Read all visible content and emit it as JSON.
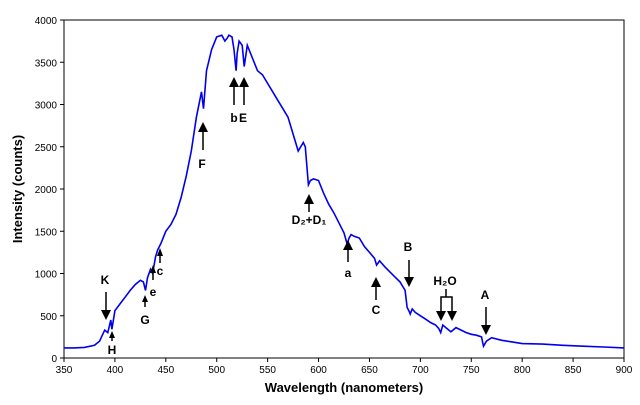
{
  "chart_data": {
    "type": "line",
    "xlabel": "Wavelength (nanometers)",
    "ylabel": "Intensity (counts)",
    "xlim": [
      350,
      900
    ],
    "ylim": [
      0,
      4000
    ],
    "xticks": [
      350,
      400,
      450,
      500,
      550,
      600,
      650,
      700,
      750,
      800,
      850,
      900
    ],
    "yticks": [
      0,
      500,
      1000,
      1500,
      2000,
      2500,
      3000,
      3500,
      4000
    ],
    "grid": false,
    "line_color": "#0000ee",
    "series": [
      {
        "x": [
          350,
          360,
          370,
          380,
          385,
          390,
          393,
          395,
          396,
          397,
          400,
          405,
          410,
          415,
          420,
          425,
          428,
          430,
          432,
          435,
          437,
          440,
          442,
          445,
          450,
          455,
          460,
          465,
          470,
          475,
          480,
          485,
          487,
          490,
          495,
          500,
          505,
          508,
          510,
          512,
          515,
          517,
          519,
          520,
          522,
          525,
          527,
          530,
          535,
          540,
          545,
          550,
          555,
          560,
          565,
          570,
          575,
          580,
          585,
          587,
          590,
          592,
          595,
          600,
          605,
          610,
          615,
          620,
          625,
          628,
          630,
          632,
          635,
          640,
          645,
          650,
          655,
          657,
          660,
          665,
          670,
          675,
          680,
          685,
          687,
          689,
          690,
          692,
          695,
          700,
          705,
          710,
          715,
          718,
          720,
          722,
          725,
          728,
          730,
          735,
          740,
          745,
          750,
          755,
          760,
          762,
          765,
          770,
          780,
          790,
          800,
          820,
          840,
          860,
          880,
          900
        ],
        "y": [
          120,
          120,
          125,
          150,
          200,
          330,
          300,
          400,
          450,
          340,
          560,
          640,
          720,
          800,
          870,
          920,
          900,
          800,
          950,
          1050,
          1000,
          1200,
          1280,
          1350,
          1500,
          1580,
          1700,
          1900,
          2150,
          2450,
          2850,
          3150,
          2950,
          3400,
          3650,
          3800,
          3820,
          3750,
          3780,
          3820,
          3800,
          3650,
          3400,
          3600,
          3750,
          3700,
          3450,
          3700,
          3550,
          3400,
          3350,
          3250,
          3150,
          3050,
          2950,
          2850,
          2650,
          2450,
          2550,
          2500,
          2050,
          2100,
          2120,
          2100,
          1950,
          1820,
          1720,
          1600,
          1480,
          1350,
          1420,
          1460,
          1440,
          1420,
          1320,
          1250,
          1180,
          1100,
          1150,
          1080,
          1020,
          960,
          900,
          800,
          600,
          550,
          520,
          580,
          540,
          500,
          460,
          420,
          390,
          350,
          300,
          390,
          360,
          330,
          310,
          360,
          330,
          300,
          280,
          270,
          250,
          140,
          200,
          240,
          210,
          190,
          170,
          165,
          150,
          140,
          130,
          120
        ]
      }
    ],
    "annotations": [
      {
        "label": "K",
        "x": 393
      },
      {
        "label": "H",
        "x": 397
      },
      {
        "label": "G",
        "x": 430
      },
      {
        "label": "e",
        "x": 438
      },
      {
        "label": "c",
        "x": 445
      },
      {
        "label": "F",
        "x": 487
      },
      {
        "label": "b",
        "x": 518
      },
      {
        "label": "E",
        "x": 527
      },
      {
        "label": "D₂+D₁",
        "x": 589
      },
      {
        "label": "a",
        "x": 629
      },
      {
        "label": "C",
        "x": 656
      },
      {
        "label": "B",
        "x": 687
      },
      {
        "label": "H₂O",
        "x": 727
      },
      {
        "label": "A",
        "x": 761
      }
    ]
  }
}
